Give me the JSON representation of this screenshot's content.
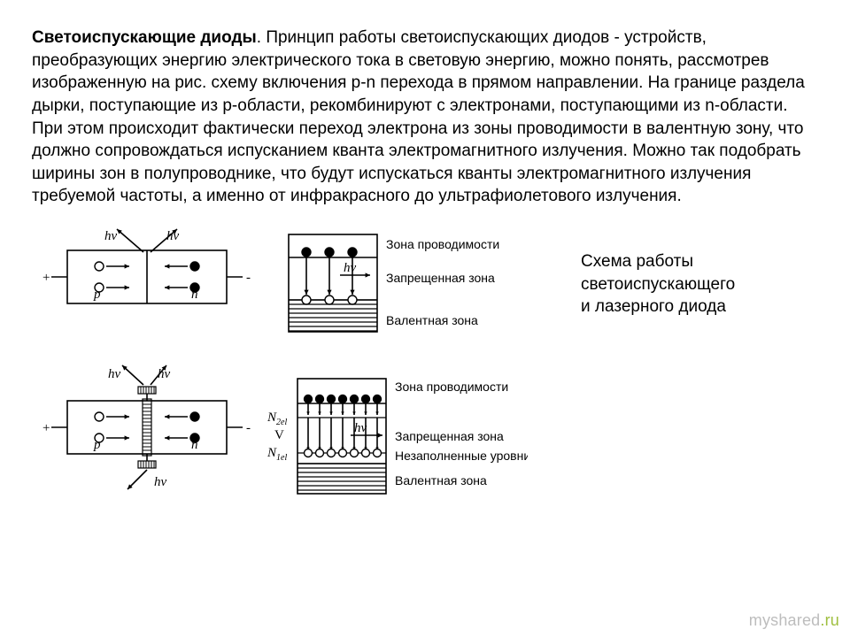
{
  "text": {
    "title": "Светоиспускающие диоды",
    "body": ". Принцип работы светоиспускающих диодов - устройств, преобразующих энергию электрического тока в световую энергию, можно понять, рассмотрев изображенную на рис. схему включения p-n перехода в прямом направлении. На границе раздела дырки, поступающие из p-области, рекомбинируют с электронами, поступающими из n-области. При этом происходит фактически переход электрона из зоны проводимости в валентную зону, что должно сопровождаться испусканием кванта электромагнитного излучения. Можно так подобрать ширины зон в полупроводнике, что будут испускаться кванты электромагнитного излучения требуемой частоты, а именно от инфракрасного до ультрафиолетового излучения."
  },
  "caption": {
    "l1": "Схема работы",
    "l2": "светоиспускающего",
    "l3": "и лазерного диода"
  },
  "fig": {
    "hv": "hv",
    "p": "p",
    "n": "n",
    "plus": "+",
    "minus": "-",
    "V": "V",
    "N2": "N",
    "N2sub": "2el",
    "N1": "N",
    "N1sub": "1el",
    "zone_cond": "Зона проводимости",
    "zone_forb": "Запрещенная зона",
    "zone_val": "Валентная зона",
    "zone_unfilled": "Незаполненные уровни"
  },
  "watermark": {
    "a": "myshared",
    "b": ".ru"
  },
  "style": {
    "stroke": "#000000",
    "fill_open": "#ffffff",
    "fill_solid": "#000000",
    "hatch_gap": 5,
    "font_diag": "italic 15px 'Times New Roman', serif",
    "font_diag_up": "15px 'Times New Roman', serif",
    "font_label": "14px Arial, sans-serif"
  }
}
